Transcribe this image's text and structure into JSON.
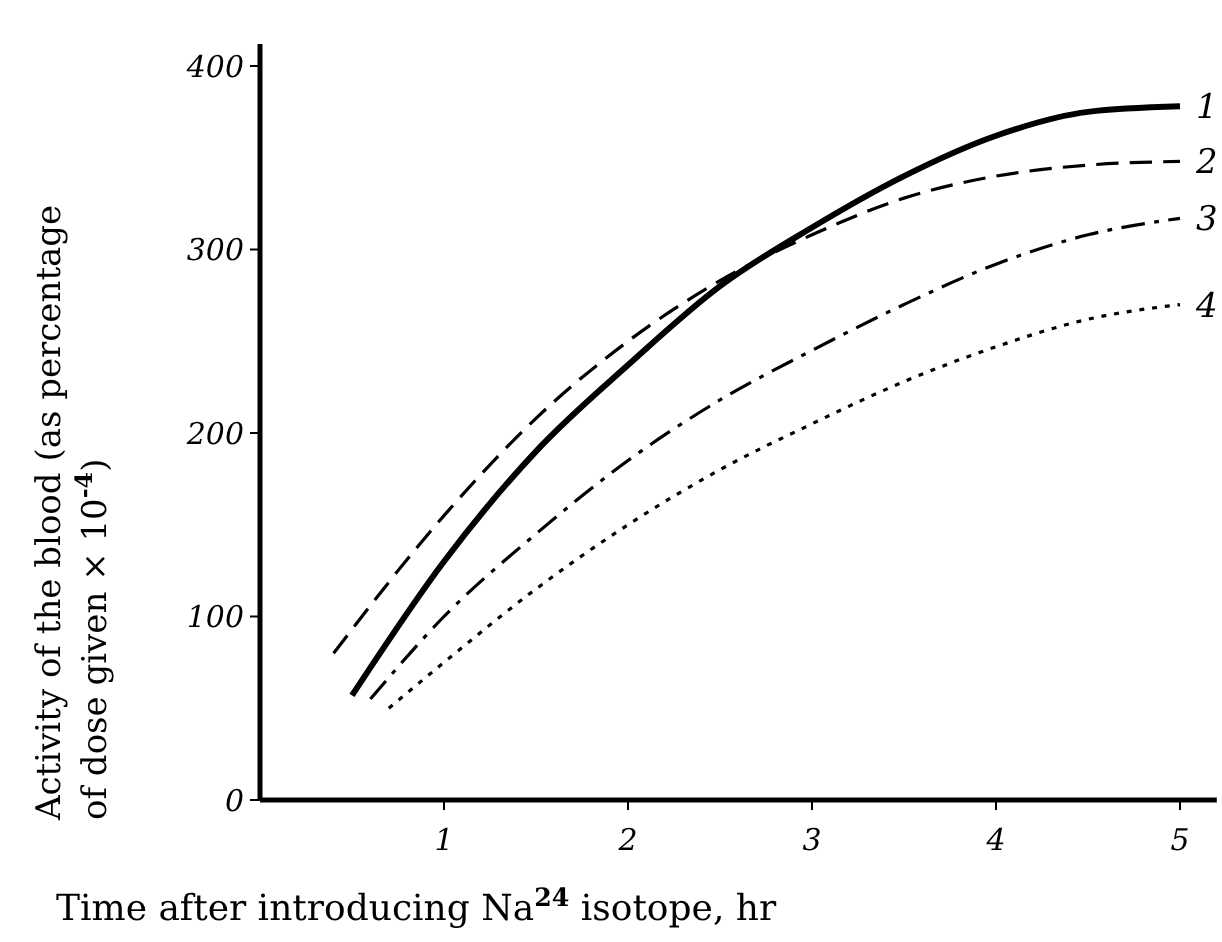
{
  "chart_data": {
    "type": "line",
    "xlabel": "Time after introducing Na$^{24}$ isotope, hr",
    "ylabel": "Activity of the blood (as percentage\nof dose given × 10$^{-4}$)",
    "xlim": [
      0,
      5.2
    ],
    "ylim": [
      0,
      412
    ],
    "xticks": [
      1,
      2,
      3,
      4,
      5
    ],
    "yticks": [
      0,
      100,
      200,
      300,
      400
    ],
    "grid": false,
    "marker": "none",
    "series": [
      {
        "name": "1",
        "color": "#000000",
        "line_style": "solid",
        "x": [
          0.5,
          1,
          1.5,
          2,
          2.5,
          3,
          3.5,
          4,
          4.5,
          5
        ],
        "values": [
          57,
          130,
          190,
          237,
          280,
          312,
          340,
          362,
          375,
          378
        ]
      },
      {
        "name": "2",
        "color": "#000000",
        "line_style": "dashed",
        "x": [
          0.4,
          1,
          1.5,
          2,
          2.5,
          3,
          3.5,
          4,
          4.5,
          5
        ],
        "values": [
          80,
          155,
          208,
          250,
          283,
          308,
          328,
          340,
          346,
          348
        ]
      },
      {
        "name": "3",
        "color": "#000000",
        "line_style": "dashdot",
        "x": [
          0.6,
          1,
          1.5,
          2,
          2.5,
          3,
          3.5,
          4,
          4.5,
          5
        ],
        "values": [
          55,
          100,
          145,
          185,
          218,
          245,
          270,
          292,
          308,
          317
        ]
      },
      {
        "name": "4",
        "color": "#000000",
        "line_style": "dotted",
        "x": [
          0.7,
          1,
          1.5,
          2,
          2.5,
          3,
          3.5,
          4,
          4.5,
          5
        ],
        "values": [
          50,
          75,
          115,
          150,
          180,
          205,
          228,
          247,
          262,
          270
        ]
      }
    ]
  }
}
